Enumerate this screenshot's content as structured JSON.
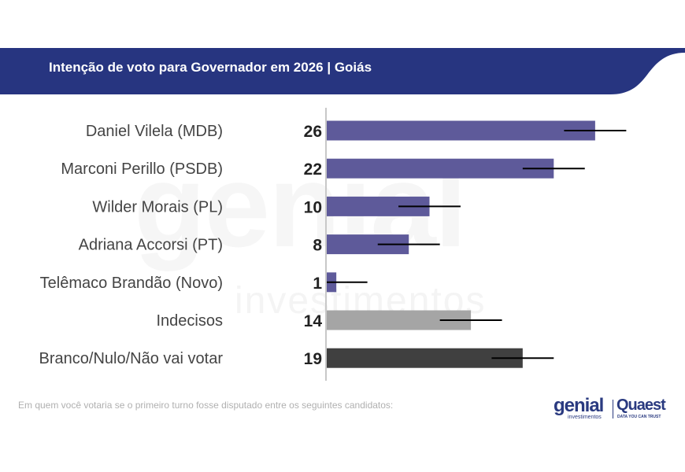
{
  "header": {
    "title": "Intenção de voto para Governador em 2026 | Goiás",
    "band_color": "#273580"
  },
  "watermark": {
    "brand": "genial",
    "sub": "investimentos"
  },
  "chart_data": {
    "type": "bar",
    "orientation": "horizontal",
    "title": "Intenção de voto para Governador em 2026 | Goiás",
    "categories": [
      "Daniel Vilela (MDB)",
      "Marconi Perillo (PSDB)",
      "Wilder Morais (PL)",
      "Adriana Accorsi (PT)",
      "Telêmaco Brandão (Novo)",
      "Indecisos",
      "Branco/Nulo/Não vai votar"
    ],
    "values": [
      26,
      22,
      10,
      8,
      1,
      14,
      19
    ],
    "colors": [
      "#5e5a9a",
      "#5e5a9a",
      "#5e5a9a",
      "#5e5a9a",
      "#5e5a9a",
      "#a5a5a5",
      "#404040"
    ],
    "error_margin": 3,
    "xlim": [
      0,
      35
    ],
    "grid": false
  },
  "footer": {
    "note": "Em quem você votaria se o primeiro turno fosse disputado entre os seguintes candidatos:",
    "logo_genial": "genial",
    "logo_genial_sub": "investimentos",
    "logo_quaest": "Quaest",
    "logo_quaest_sub": "DATA YOU CAN TRUST"
  }
}
